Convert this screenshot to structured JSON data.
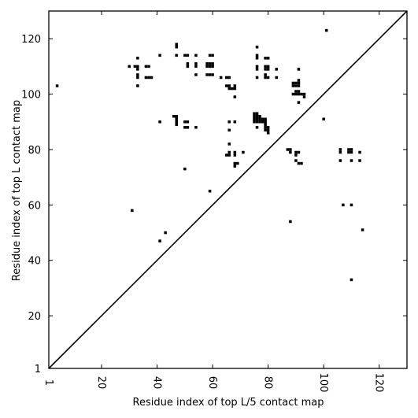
{
  "chart_data": {
    "type": "scatter",
    "title": "",
    "xlabel": "Residue index of top L/5 contact map",
    "ylabel": "Residue index of top L contact map",
    "xlim": [
      1,
      130
    ],
    "ylim": [
      1,
      130
    ],
    "xticks": [
      1,
      20,
      40,
      60,
      80,
      100,
      120
    ],
    "yticks": [
      1,
      20,
      40,
      60,
      80,
      100,
      120
    ],
    "grid": false,
    "diagonal": true,
    "marker": "square",
    "colors": {
      "points": "#000000",
      "diagonal": "#000000",
      "frame": "#000000"
    },
    "series": [
      {
        "points": [
          [
            4,
            103
          ],
          [
            31,
            58
          ],
          [
            41,
            47
          ],
          [
            43,
            50
          ],
          [
            50,
            73
          ],
          [
            59,
            65
          ],
          [
            88,
            54
          ],
          [
            107,
            60
          ],
          [
            110,
            60
          ],
          [
            110,
            33
          ],
          [
            114,
            51
          ],
          [
            101,
            123
          ],
          [
            100,
            91
          ],
          [
            30,
            110
          ],
          [
            32,
            110
          ],
          [
            33,
            110
          ],
          [
            33,
            109
          ],
          [
            33,
            107
          ],
          [
            33,
            106
          ],
          [
            33,
            103
          ],
          [
            33,
            113
          ],
          [
            36,
            110
          ],
          [
            37,
            110
          ],
          [
            36,
            106
          ],
          [
            37,
            106
          ],
          [
            38,
            106
          ],
          [
            41,
            114
          ],
          [
            41,
            90
          ],
          [
            47,
            118
          ],
          [
            47,
            117
          ],
          [
            47,
            114
          ],
          [
            46,
            92
          ],
          [
            47,
            92
          ],
          [
            47,
            91
          ],
          [
            47,
            90
          ],
          [
            47,
            89
          ],
          [
            50,
            114
          ],
          [
            51,
            114
          ],
          [
            51,
            111
          ],
          [
            51,
            110
          ],
          [
            50,
            90
          ],
          [
            51,
            90
          ],
          [
            50,
            88
          ],
          [
            51,
            88
          ],
          [
            54,
            114
          ],
          [
            54,
            111
          ],
          [
            54,
            110
          ],
          [
            54,
            107
          ],
          [
            54,
            88
          ],
          [
            58,
            111
          ],
          [
            58,
            110
          ],
          [
            58,
            107
          ],
          [
            59,
            111
          ],
          [
            59,
            110
          ],
          [
            59,
            107
          ],
          [
            60,
            111
          ],
          [
            60,
            110
          ],
          [
            60,
            107
          ],
          [
            59,
            114
          ],
          [
            60,
            114
          ],
          [
            63,
            106
          ],
          [
            65,
            106
          ],
          [
            66,
            106
          ],
          [
            65,
            103
          ],
          [
            66,
            103
          ],
          [
            66,
            102
          ],
          [
            67,
            102
          ],
          [
            68,
            102
          ],
          [
            68,
            103
          ],
          [
            68,
            99
          ],
          [
            66,
            90
          ],
          [
            68,
            90
          ],
          [
            66,
            87
          ],
          [
            66,
            82
          ],
          [
            65,
            78
          ],
          [
            66,
            78
          ],
          [
            66,
            79
          ],
          [
            68,
            79
          ],
          [
            68,
            78
          ],
          [
            68,
            75
          ],
          [
            69,
            75
          ],
          [
            68,
            74
          ],
          [
            71,
            79
          ],
          [
            76,
            117
          ],
          [
            76,
            114
          ],
          [
            76,
            113
          ],
          [
            76,
            110
          ],
          [
            76,
            109
          ],
          [
            76,
            106
          ],
          [
            79,
            113
          ],
          [
            80,
            113
          ],
          [
            79,
            110
          ],
          [
            80,
            110
          ],
          [
            80,
            109
          ],
          [
            79,
            109
          ],
          [
            79,
            107
          ],
          [
            79,
            106
          ],
          [
            80,
            106
          ],
          [
            83,
            109
          ],
          [
            83,
            106
          ],
          [
            75,
            93
          ],
          [
            76,
            93
          ],
          [
            75,
            92
          ],
          [
            76,
            92
          ],
          [
            77,
            92
          ],
          [
            75,
            91
          ],
          [
            76,
            91
          ],
          [
            77,
            91
          ],
          [
            78,
            91
          ],
          [
            75,
            90
          ],
          [
            76,
            90
          ],
          [
            77,
            90
          ],
          [
            78,
            90
          ],
          [
            79,
            90
          ],
          [
            76,
            88
          ],
          [
            79,
            91
          ],
          [
            79,
            89
          ],
          [
            79,
            88
          ],
          [
            80,
            88
          ],
          [
            79,
            87
          ],
          [
            80,
            87
          ],
          [
            80,
            86
          ],
          [
            87,
            80
          ],
          [
            88,
            80
          ],
          [
            88,
            79
          ],
          [
            90,
            79
          ],
          [
            91,
            79
          ],
          [
            90,
            78
          ],
          [
            90,
            76
          ],
          [
            91,
            75
          ],
          [
            92,
            75
          ],
          [
            89,
            104
          ],
          [
            90,
            104
          ],
          [
            91,
            104
          ],
          [
            89,
            103
          ],
          [
            90,
            103
          ],
          [
            91,
            103
          ],
          [
            91,
            105
          ],
          [
            91,
            109
          ],
          [
            89,
            100
          ],
          [
            90,
            100
          ],
          [
            90,
            101
          ],
          [
            91,
            101
          ],
          [
            91,
            100
          ],
          [
            92,
            100
          ],
          [
            93,
            100
          ],
          [
            93,
            99
          ],
          [
            91,
            97
          ],
          [
            106,
            80
          ],
          [
            106,
            79
          ],
          [
            106,
            76
          ],
          [
            109,
            80
          ],
          [
            110,
            80
          ],
          [
            109,
            79
          ],
          [
            110,
            79
          ],
          [
            110,
            76
          ],
          [
            113,
            79
          ],
          [
            113,
            76
          ]
        ]
      }
    ]
  }
}
